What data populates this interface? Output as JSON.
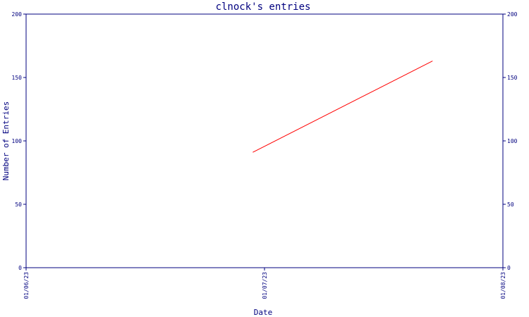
{
  "chart_data": {
    "type": "line",
    "title": "clnock's entries",
    "xlabel": "Date",
    "ylabel": "Number of Entries",
    "x_tick_labels": [
      "01/06/23",
      "01/07/23",
      "01/08/23"
    ],
    "y_tick_labels": [
      "0",
      "50",
      "100",
      "150",
      "200"
    ],
    "ylim": [
      0,
      200
    ],
    "xlim": [
      "2023-06-01",
      "2023-08-01"
    ],
    "grid": false,
    "series": [
      {
        "color": "#ff0000",
        "x": [
          "2023-06-30",
          "2023-07-23"
        ],
        "y": [
          91,
          163
        ]
      }
    ],
    "colors": {
      "axis": "#00007f",
      "text": "#00007f",
      "background": "#ffffff"
    }
  }
}
